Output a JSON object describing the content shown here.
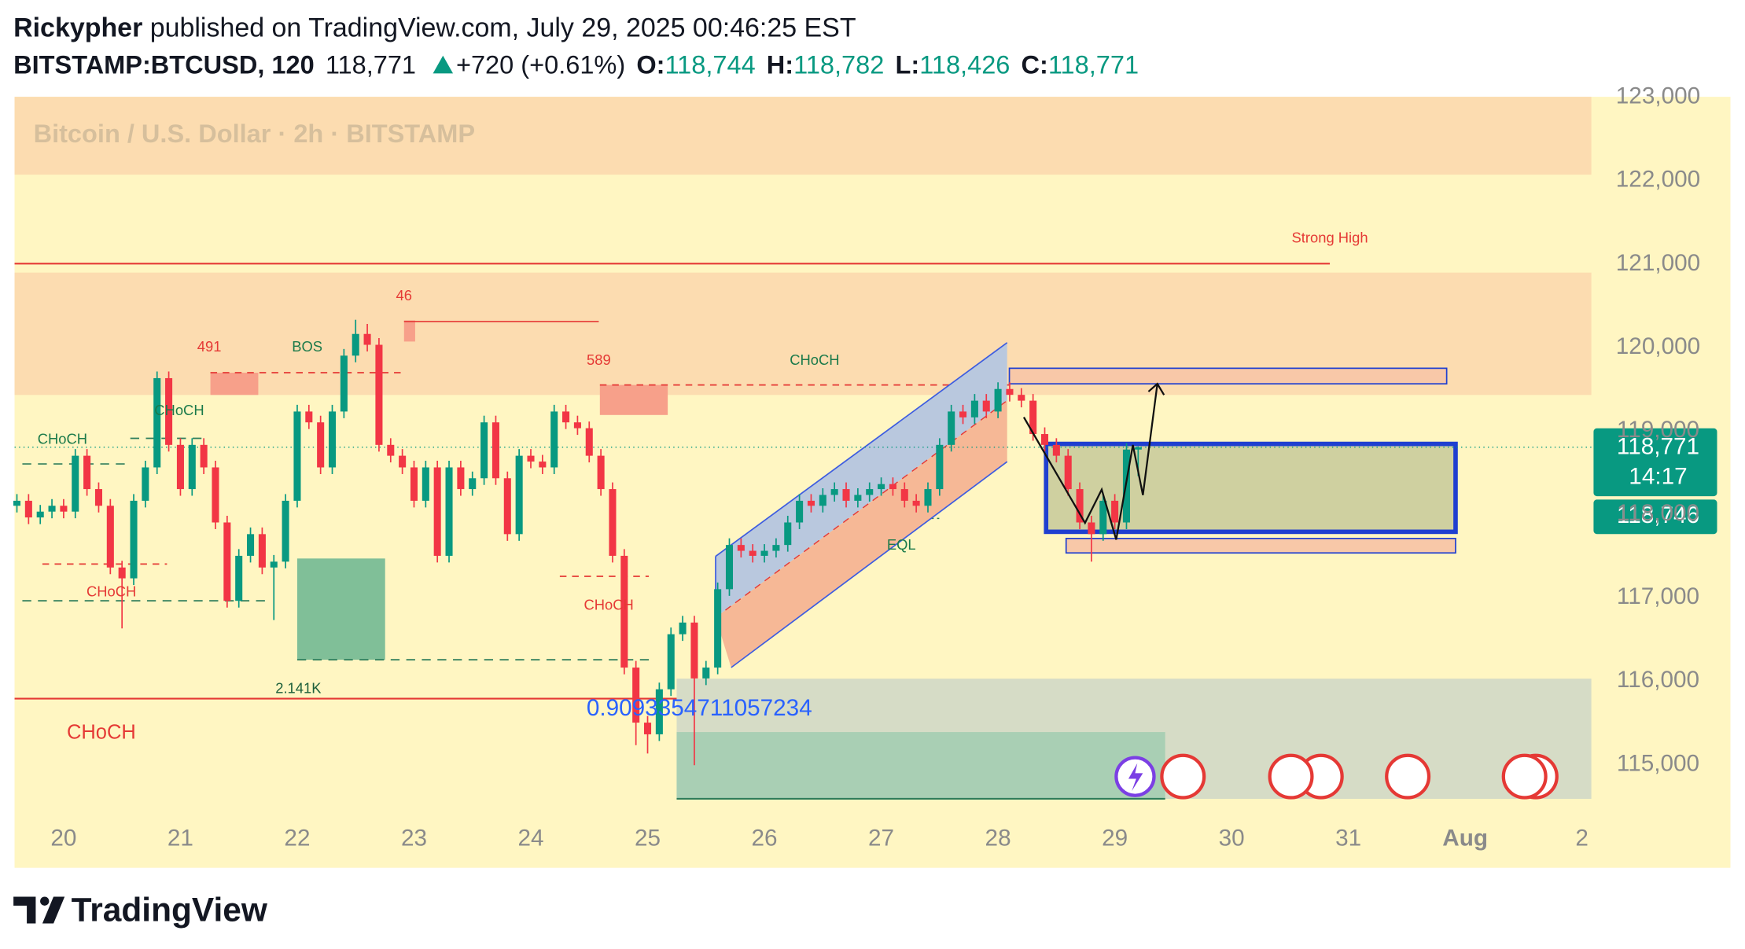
{
  "header": {
    "author": "Rickypher",
    "published": "published on TradingView.com, July 29, 2025 00:46:25 EST",
    "symbol": "BITSTAMP:BTCUSD, 120",
    "last": "118,771",
    "change": "+720 (+0.61%)",
    "ohlc": [
      {
        "key": "O:",
        "value": "118,744"
      },
      {
        "key": "H:",
        "value": "118,782"
      },
      {
        "key": "L:",
        "value": "118,426"
      },
      {
        "key": "C:",
        "value": "118,771"
      }
    ]
  },
  "chart_data": {
    "type": "candlestick",
    "title": "Bitcoin / U.S. Dollar · 2h · BITSTAMP",
    "up_color": "#089981",
    "down_color": "#f23645",
    "grid": false,
    "xlim": [
      19.58,
      33.08
    ],
    "xticks": [
      20,
      21,
      22,
      23,
      24,
      25,
      26,
      27,
      28,
      29,
      30,
      31,
      {
        "value": 32,
        "label": "Aug"
      },
      {
        "value": 33,
        "label": "2"
      }
    ],
    "ylim": [
      114330,
      123000
    ],
    "yticks": [
      {
        "value": 115000,
        "label": "115,000"
      },
      {
        "value": 116000,
        "label": "116,000"
      },
      {
        "value": 117000,
        "label": "117,000"
      },
      {
        "value": 118000,
        "label": "118,000"
      },
      {
        "value": 119000,
        "label": "119,000"
      },
      {
        "value": 120000,
        "label": "120,000"
      },
      {
        "value": 121000,
        "label": "121,000"
      },
      {
        "value": 122000,
        "label": "122,000"
      },
      {
        "value": 123000,
        "label": "123,000"
      }
    ],
    "x": [
      19.6,
      19.7,
      19.8,
      19.9,
      20.0,
      20.1,
      20.2,
      20.3,
      20.4,
      20.5,
      20.6,
      20.7,
      20.8,
      20.9,
      21.0,
      21.1,
      21.2,
      21.3,
      21.4,
      21.5,
      21.6,
      21.7,
      21.8,
      21.9,
      22.0,
      22.1,
      22.2,
      22.3,
      22.4,
      22.5,
      22.6,
      22.7,
      22.8,
      22.9,
      23.0,
      23.1,
      23.2,
      23.3,
      23.4,
      23.5,
      23.6,
      23.7,
      23.8,
      23.9,
      24.0,
      24.1,
      24.2,
      24.3,
      24.4,
      24.5,
      24.6,
      24.7,
      24.8,
      24.9,
      25.0,
      25.1,
      25.2,
      25.3,
      25.4,
      25.5,
      25.6,
      25.7,
      25.8,
      25.9,
      26.0,
      26.1,
      26.2,
      26.3,
      26.4,
      26.5,
      26.6,
      26.7,
      26.8,
      26.9,
      27.0,
      27.1,
      27.2,
      27.3,
      27.4,
      27.5,
      27.6,
      27.7,
      27.8,
      27.9,
      28.0,
      28.1,
      28.2,
      28.3,
      28.4,
      28.5,
      28.6,
      28.7,
      28.8,
      28.9,
      29.0,
      29.1,
      29.2
    ],
    "open": [
      118070,
      118130,
      117930,
      118000,
      118070,
      118000,
      118670,
      118270,
      118070,
      117330,
      117200,
      118130,
      118530,
      119600,
      118800,
      118270,
      118800,
      118530,
      117870,
      116930,
      117470,
      117730,
      117330,
      117400,
      118130,
      119200,
      119070,
      118530,
      119200,
      119870,
      120130,
      120000,
      118800,
      118670,
      118530,
      118130,
      118530,
      117470,
      118530,
      118270,
      118400,
      119070,
      118400,
      117730,
      118670,
      118600,
      118530,
      119200,
      119070,
      119000,
      118670,
      118270,
      117470,
      116130,
      115470,
      115330,
      115870,
      116530,
      116670,
      116000,
      116130,
      117070,
      117600,
      117530,
      117470,
      117530,
      117600,
      117870,
      118130,
      118070,
      118200,
      118270,
      118130,
      118200,
      118270,
      118330,
      118270,
      118130,
      118070,
      118270,
      118800,
      119200,
      119130,
      119330,
      119200,
      119470,
      119400,
      119330,
      118930,
      118800,
      118670,
      118270,
      117870,
      117730,
      118130,
      117870,
      118744
    ],
    "high": [
      118210,
      118210,
      118080,
      118150,
      118150,
      118750,
      118750,
      118350,
      118150,
      117410,
      118210,
      118610,
      119680,
      119680,
      118880,
      118880,
      118880,
      118610,
      117950,
      117550,
      117810,
      117810,
      117480,
      118210,
      119280,
      119280,
      119150,
      119280,
      119950,
      120300,
      120250,
      120080,
      118880,
      118750,
      118610,
      118610,
      118610,
      118610,
      118610,
      118480,
      119150,
      119150,
      118480,
      118750,
      118750,
      118680,
      119280,
      119280,
      119150,
      119080,
      118750,
      118350,
      117550,
      116210,
      115550,
      115950,
      116610,
      116750,
      116750,
      116210,
      117150,
      117680,
      117680,
      117610,
      117610,
      117680,
      117950,
      118210,
      118210,
      118280,
      118350,
      118350,
      118280,
      118350,
      118410,
      118410,
      118350,
      118210,
      118350,
      118880,
      119280,
      119280,
      119410,
      119410,
      119550,
      119550,
      119480,
      119410,
      119010,
      118880,
      118750,
      118350,
      117950,
      118210,
      118210,
      118820,
      118782
    ],
    "low": [
      117990,
      117850,
      117850,
      117920,
      117920,
      117920,
      118190,
      117990,
      117250,
      116600,
      117120,
      118050,
      118450,
      118720,
      118190,
      118190,
      118450,
      117790,
      116850,
      116850,
      117390,
      117250,
      116700,
      117320,
      118050,
      118990,
      118450,
      118450,
      119120,
      119790,
      119920,
      118720,
      118590,
      118450,
      118050,
      118050,
      117390,
      117390,
      118190,
      118190,
      118320,
      118320,
      117650,
      117650,
      118520,
      118450,
      118450,
      118990,
      118920,
      118590,
      118190,
      117390,
      116050,
      115200,
      115100,
      115250,
      115790,
      116450,
      114960,
      115920,
      116050,
      116990,
      117450,
      117390,
      117390,
      117450,
      117520,
      117790,
      117990,
      117990,
      118120,
      118050,
      118050,
      118120,
      118190,
      118190,
      118050,
      117990,
      117990,
      118190,
      118720,
      119050,
      119050,
      119120,
      119120,
      119320,
      119250,
      118850,
      118720,
      118590,
      118190,
      117790,
      117400,
      117650,
      117790,
      117790,
      118426
    ],
    "close": [
      118130,
      117930,
      118000,
      118070,
      118000,
      118670,
      118270,
      118070,
      117330,
      117200,
      118130,
      118530,
      119600,
      118800,
      118270,
      118800,
      118530,
      117870,
      116930,
      117470,
      117730,
      117330,
      117400,
      118130,
      119200,
      119070,
      118530,
      119200,
      119870,
      120130,
      120000,
      118800,
      118670,
      118530,
      118130,
      118530,
      117470,
      118530,
      118270,
      118400,
      119070,
      118400,
      117730,
      118670,
      118600,
      118530,
      119200,
      119070,
      119000,
      118670,
      118270,
      117470,
      116130,
      115470,
      115330,
      115870,
      116530,
      116670,
      116000,
      116130,
      117070,
      117600,
      117530,
      117470,
      117530,
      117600,
      117870,
      118130,
      118070,
      118200,
      118270,
      118130,
      118200,
      118270,
      118330,
      118270,
      118130,
      118070,
      118270,
      118800,
      119200,
      119130,
      119330,
      119200,
      119470,
      119400,
      119330,
      118930,
      118800,
      118670,
      118270,
      117870,
      117730,
      118130,
      117870,
      118744,
      118771
    ],
    "annotations": [
      "Strong High",
      "46",
      "491",
      "BOS",
      "589",
      "CHoCH",
      "CHoCH",
      "CHoCH",
      "CHoCH",
      "CHoCH",
      "EQL",
      "2.141K",
      "0.9093354711057234",
      "CHoCH"
    ],
    "price_labels": [
      "118,771",
      "14:17",
      "118,746"
    ]
  },
  "footer": {
    "brand": "TradingView"
  }
}
